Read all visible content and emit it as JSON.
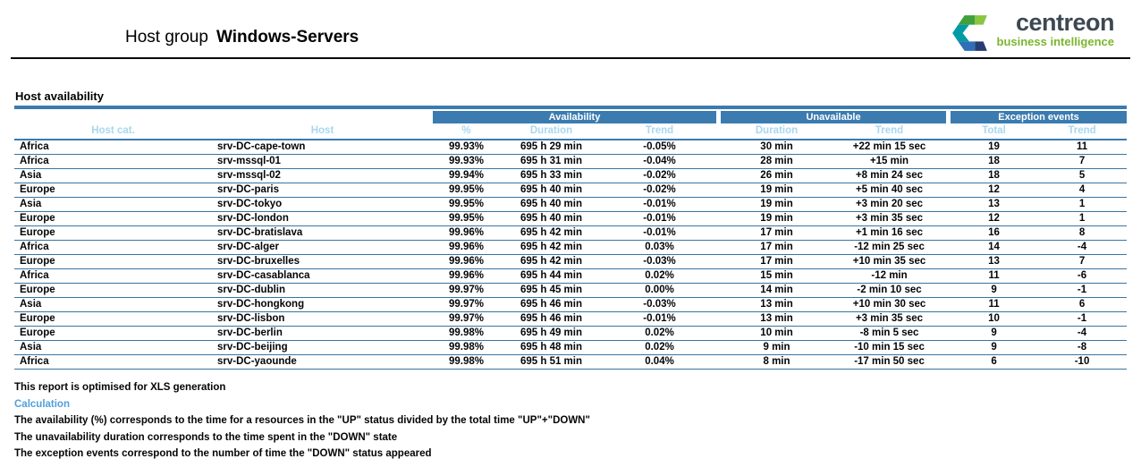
{
  "header": {
    "title_prefix": "Host group",
    "title_name": "Windows-Servers",
    "logo": {
      "brand": "centreon",
      "tagline": "business intelligence"
    }
  },
  "section_title": "Host availability",
  "table": {
    "group_headers": {
      "availability": "Availability",
      "unavailable": "Unavailable",
      "exception_events": "Exception events"
    },
    "columns": [
      "Host cat.",
      "Host",
      "%",
      "Duration",
      "Trend",
      "Duration",
      "Trend",
      "Total",
      "Trend"
    ],
    "column_keys": [
      "host-cat",
      "host",
      "availability-percent",
      "availability-duration",
      "availability-trend",
      "unavailable-duration",
      "unavailable-trend",
      "exception-total",
      "exception-trend"
    ],
    "rows": [
      [
        "Africa",
        "srv-DC-cape-town",
        "99.93%",
        "695 h 29 min",
        "-0.05%",
        "30 min",
        "+22 min 15 sec",
        "19",
        "11"
      ],
      [
        "Africa",
        "srv-mssql-01",
        "99.93%",
        "695 h 31 min",
        "-0.04%",
        "28 min",
        "+15 min",
        "18",
        "7"
      ],
      [
        "Asia",
        "srv-mssql-02",
        "99.94%",
        "695 h 33 min",
        "-0.02%",
        "26 min",
        "+8 min 24 sec",
        "18",
        "5"
      ],
      [
        "Europe",
        "srv-DC-paris",
        "99.95%",
        "695 h 40 min",
        "-0.02%",
        "19 min",
        "+5 min 40 sec",
        "12",
        "4"
      ],
      [
        "Asia",
        "srv-DC-tokyo",
        "99.95%",
        "695 h 40 min",
        "-0.01%",
        "19 min",
        "+3 min 20 sec",
        "13",
        "1"
      ],
      [
        "Europe",
        "srv-DC-london",
        "99.95%",
        "695 h 40 min",
        "-0.01%",
        "19 min",
        "+3 min 35 sec",
        "12",
        "1"
      ],
      [
        "Europe",
        "srv-DC-bratislava",
        "99.96%",
        "695 h 42 min",
        "-0.01%",
        "17 min",
        "+1 min 16 sec",
        "16",
        "8"
      ],
      [
        "Africa",
        "srv-DC-alger",
        "99.96%",
        "695 h 42 min",
        "0.03%",
        "17 min",
        "-12 min 25 sec",
        "14",
        "-4"
      ],
      [
        "Europe",
        "srv-DC-bruxelles",
        "99.96%",
        "695 h 42 min",
        "-0.03%",
        "17 min",
        "+10 min 35 sec",
        "13",
        "7"
      ],
      [
        "Africa",
        "srv-DC-casablanca",
        "99.96%",
        "695 h 44 min",
        "0.02%",
        "15 min",
        "-12 min",
        "11",
        "-6"
      ],
      [
        "Europe",
        "srv-DC-dublin",
        "99.97%",
        "695 h 45 min",
        "0.00%",
        "14 min",
        "-2 min 10 sec",
        "9",
        "-1"
      ],
      [
        "Asia",
        "srv-DC-hongkong",
        "99.97%",
        "695 h 46 min",
        "-0.03%",
        "13 min",
        "+10 min 30 sec",
        "11",
        "6"
      ],
      [
        "Europe",
        "srv-DC-lisbon",
        "99.97%",
        "695 h 46 min",
        "-0.01%",
        "13 min",
        "+3 min 35 sec",
        "10",
        "-1"
      ],
      [
        "Europe",
        "srv-DC-berlin",
        "99.98%",
        "695 h 49 min",
        "0.02%",
        "10 min",
        "-8 min 5 sec",
        "9",
        "-4"
      ],
      [
        "Asia",
        "srv-DC-beijing",
        "99.98%",
        "695 h 48 min",
        "0.02%",
        "9 min",
        "-10 min 15 sec",
        "9",
        "-8"
      ],
      [
        "Africa",
        "srv-DC-yaounde",
        "99.98%",
        "695 h 51 min",
        "0.04%",
        "8 min",
        "-17 min 50 sec",
        "6",
        "-10"
      ]
    ]
  },
  "footer": {
    "note": "This report is optimised for XLS generation",
    "calculation_label": "Calculation",
    "lines": [
      "The availability (%) corresponds to the time for a resources in the \"UP\" status divided by the total time \"UP\"+\"DOWN\"",
      "The unavailability duration corresponds to the time spent in the \"DOWN\" state",
      "The exception events correspond to the number of time the \"DOWN\" status appeared"
    ]
  },
  "colors": {
    "header_bar_blue": "#3B7BB0",
    "subheader_text_blue": "#A9D7EF",
    "row_line_blue": "#3875A3",
    "calculation_text_blue": "#50A0D8",
    "logo_brand_dark": "#3D4852",
    "logo_tagline_green": "#7CB52E"
  }
}
